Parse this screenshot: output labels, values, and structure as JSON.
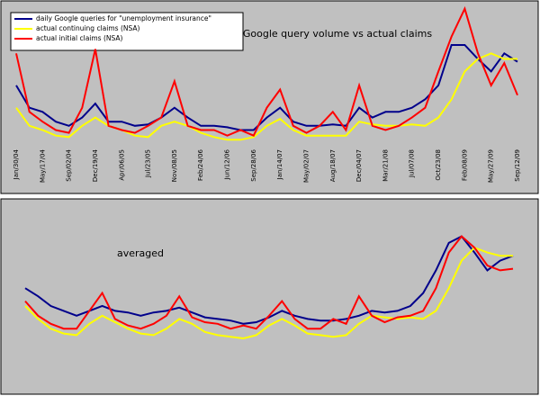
{
  "chart_data": [
    {
      "type": "line",
      "title": "Google query volume vs actual claims",
      "categories": [
        "Jan/30/04",
        null,
        "May/17/04",
        null,
        "Sep/02/04",
        null,
        "Dec/19/04",
        null,
        "Apr/06/05",
        null,
        "Jul/23/05",
        null,
        "Nov/08/05",
        null,
        "Feb/24/06",
        null,
        "Jun/12/06",
        null,
        "Sep/28/06",
        null,
        "Jan/14/07",
        null,
        "May/02/07",
        null,
        "Aug/18/07",
        null,
        "Dec/04/07",
        null,
        "Mar/21/08",
        null,
        "Jul/07/08",
        null,
        "Oct/23/08",
        null,
        "Feb/08/09",
        null,
        "May/27/09",
        null,
        "Sep/12/09"
      ],
      "ylim": [
        0,
        100
      ],
      "legend": "upper left",
      "series": [
        {
          "name": "daily Google queries for \"unemployment insurance\"",
          "color": "#00008b",
          "values": [
            42,
            26,
            23,
            16,
            13,
            19,
            29,
            16,
            16,
            13,
            14,
            19,
            26,
            19,
            13,
            13,
            12,
            10,
            10,
            19,
            26,
            16,
            13,
            13,
            14,
            13,
            26,
            19,
            23,
            23,
            26,
            32,
            42,
            71,
            71,
            61,
            52,
            65,
            59
          ]
        },
        {
          "name": "actual continuing claims (NSA)",
          "color": "#ffff00",
          "values": [
            26,
            13,
            10,
            6,
            5,
            13,
            19,
            13,
            10,
            6,
            5,
            13,
            16,
            13,
            8,
            5,
            3,
            3,
            5,
            13,
            18,
            10,
            6,
            6,
            6,
            6,
            16,
            14,
            13,
            13,
            14,
            13,
            19,
            32,
            52,
            61,
            65,
            61,
            61
          ]
        },
        {
          "name": "actual initial claims (NSA)",
          "color": "#ff0000",
          "values": [
            65,
            23,
            16,
            10,
            8,
            26,
            68,
            13,
            10,
            8,
            13,
            19,
            45,
            13,
            10,
            10,
            6,
            10,
            6,
            26,
            39,
            13,
            8,
            13,
            23,
            10,
            42,
            13,
            10,
            13,
            19,
            26,
            52,
            77,
            97,
            65,
            42,
            58,
            35
          ]
        }
      ]
    },
    {
      "type": "line",
      "annotation": "averaged",
      "ylim": [
        0,
        100
      ],
      "series": [
        {
          "color": "#00008b",
          "values": [
            61,
            56,
            50,
            47,
            44,
            47,
            50,
            47,
            46,
            44,
            46,
            47,
            49,
            46,
            43,
            42,
            41,
            39,
            40,
            43,
            47,
            44,
            42,
            41,
            41,
            42,
            44,
            47,
            46,
            47,
            50,
            58,
            72,
            89,
            93,
            83,
            72,
            78,
            81
          ]
        },
        {
          "color": "#ffff00",
          "values": [
            50,
            42,
            36,
            33,
            32,
            39,
            44,
            40,
            36,
            33,
            32,
            36,
            42,
            39,
            34,
            32,
            31,
            30,
            32,
            38,
            42,
            38,
            33,
            32,
            31,
            32,
            39,
            44,
            43,
            42,
            43,
            42,
            47,
            61,
            78,
            86,
            83,
            81,
            81
          ]
        },
        {
          "color": "#ff0000",
          "values": [
            53,
            44,
            39,
            36,
            36,
            47,
            58,
            42,
            38,
            36,
            39,
            44,
            56,
            43,
            40,
            39,
            36,
            38,
            36,
            44,
            53,
            42,
            36,
            36,
            42,
            39,
            56,
            44,
            40,
            43,
            44,
            47,
            61,
            83,
            93,
            86,
            75,
            72,
            73
          ]
        }
      ]
    }
  ]
}
